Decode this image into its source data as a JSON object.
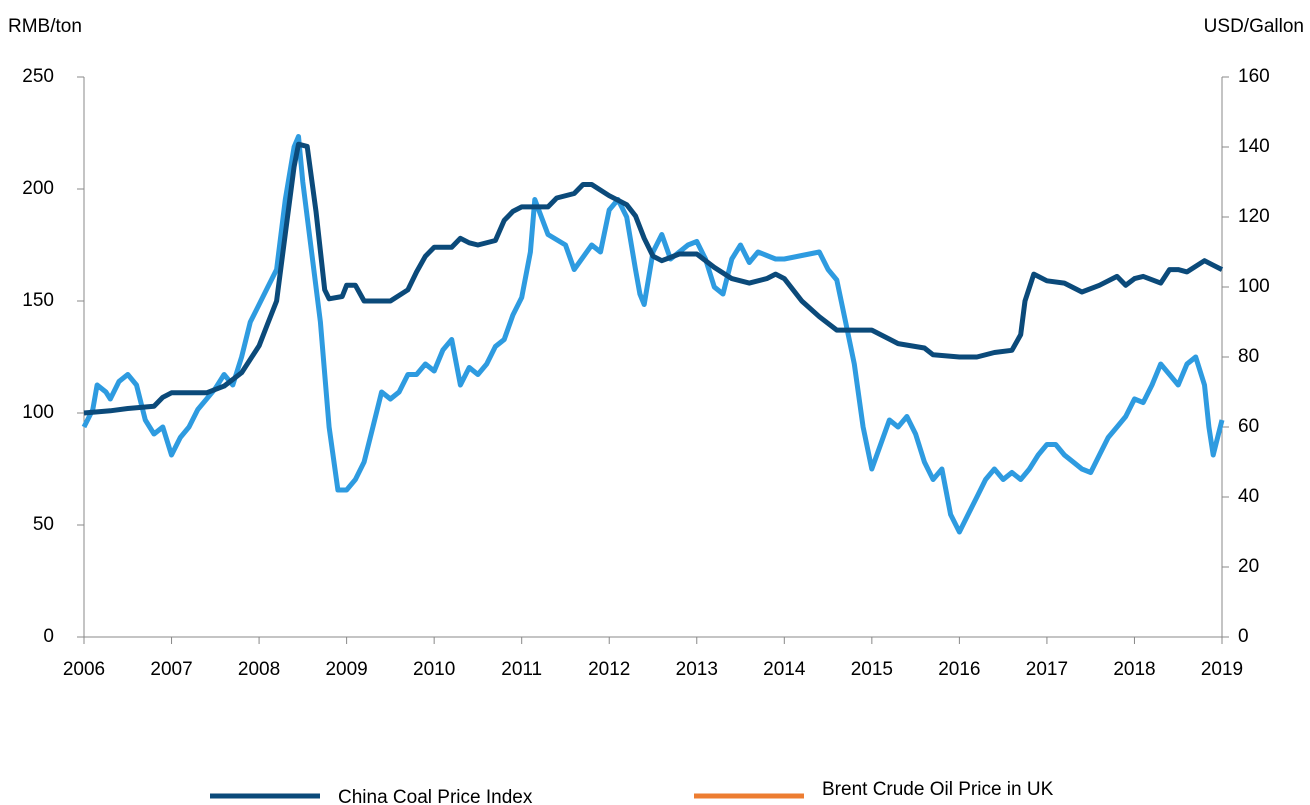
{
  "chart_data": {
    "type": "line",
    "y_label": "RMB/ton",
    "y2_label": "USD/Gallon",
    "xlim": [
      2006,
      2019
    ],
    "xticks": [
      2006,
      2007,
      2008,
      2009,
      2010,
      2011,
      2012,
      2013,
      2014,
      2015,
      2016,
      2017,
      2018,
      2019
    ],
    "ylim": [
      0,
      250
    ],
    "yticks": [
      0,
      50,
      100,
      150,
      200,
      250
    ],
    "y2lim": [
      0,
      160
    ],
    "y2ticks": [
      0,
      20,
      40,
      60,
      80,
      100,
      120,
      140,
      160
    ],
    "legend": "bottom",
    "series": [
      {
        "name": "China Coal Price Index",
        "color": "#0b4a7a",
        "axis": "y",
        "x": [
          2006.0,
          2006.3,
          2006.5,
          2006.8,
          2006.9,
          2007.0,
          2007.4,
          2007.6,
          2007.8,
          2008.0,
          2008.1,
          2008.2,
          2008.3,
          2008.4,
          2008.45,
          2008.55,
          2008.65,
          2008.75,
          2008.8,
          2008.95,
          2009.0,
          2009.1,
          2009.2,
          2009.5,
          2009.7,
          2009.8,
          2009.9,
          2010.0,
          2010.2,
          2010.3,
          2010.4,
          2010.5,
          2010.7,
          2010.8,
          2010.9,
          2011.0,
          2011.3,
          2011.4,
          2011.6,
          2011.7,
          2011.8,
          2012.0,
          2012.2,
          2012.3,
          2012.4,
          2012.5,
          2012.6,
          2012.8,
          2013.0,
          2013.2,
          2013.4,
          2013.6,
          2013.8,
          2013.9,
          2014.0,
          2014.2,
          2014.4,
          2014.6,
          2014.8,
          2015.0,
          2015.2,
          2015.3,
          2015.6,
          2015.7,
          2016.0,
          2016.2,
          2016.4,
          2016.6,
          2016.7,
          2016.75,
          2016.85,
          2017.0,
          2017.2,
          2017.4,
          2017.6,
          2017.8,
          2017.9,
          2018.0,
          2018.1,
          2018.3,
          2018.4,
          2018.5,
          2018.6,
          2018.8,
          2018.9,
          2019.0
        ],
        "values": [
          100,
          101,
          102,
          103,
          107,
          109,
          109,
          112,
          118,
          130,
          140,
          150,
          180,
          210,
          220,
          219,
          190,
          155,
          151,
          152,
          157,
          157,
          150,
          150,
          155,
          163,
          170,
          174,
          174,
          178,
          176,
          175,
          177,
          186,
          190,
          192,
          192,
          196,
          198,
          202,
          202,
          197,
          193,
          188,
          178,
          170,
          168,
          171,
          171,
          165,
          160,
          158,
          160,
          162,
          160,
          150,
          143,
          137,
          137,
          137,
          133,
          131,
          129,
          126,
          125,
          125,
          127,
          128,
          135,
          150,
          162,
          159,
          158,
          154,
          157,
          161,
          157,
          160,
          161,
          158,
          164,
          164,
          163,
          168,
          166,
          164
        ]
      },
      {
        "name": "Brent  Crude Oil Price in UK",
        "color": "#2e9be0",
        "legend_color": "#ed7d31",
        "axis": "y2",
        "x": [
          2006.0,
          2006.1,
          2006.15,
          2006.25,
          2006.3,
          2006.4,
          2006.5,
          2006.6,
          2006.7,
          2006.8,
          2006.9,
          2007.0,
          2007.1,
          2007.2,
          2007.3,
          2007.4,
          2007.5,
          2007.6,
          2007.7,
          2007.8,
          2007.9,
          2008.0,
          2008.1,
          2008.2,
          2008.3,
          2008.4,
          2008.45,
          2008.5,
          2008.6,
          2008.7,
          2008.8,
          2008.9,
          2009.0,
          2009.1,
          2009.2,
          2009.3,
          2009.4,
          2009.5,
          2009.6,
          2009.7,
          2009.8,
          2009.9,
          2010.0,
          2010.1,
          2010.2,
          2010.3,
          2010.4,
          2010.5,
          2010.6,
          2010.7,
          2010.8,
          2010.9,
          2011.0,
          2011.1,
          2011.15,
          2011.3,
          2011.5,
          2011.6,
          2011.8,
          2011.9,
          2012.0,
          2012.1,
          2012.2,
          2012.3,
          2012.35,
          2012.4,
          2012.5,
          2012.6,
          2012.7,
          2012.8,
          2012.9,
          2013.0,
          2013.1,
          2013.2,
          2013.3,
          2013.4,
          2013.5,
          2013.6,
          2013.7,
          2013.8,
          2013.9,
          2014.0,
          2014.2,
          2014.4,
          2014.5,
          2014.6,
          2014.7,
          2014.8,
          2014.9,
          2015.0,
          2015.1,
          2015.2,
          2015.3,
          2015.4,
          2015.5,
          2015.6,
          2015.7,
          2015.8,
          2015.9,
          2016.0,
          2016.1,
          2016.2,
          2016.3,
          2016.4,
          2016.5,
          2016.6,
          2016.7,
          2016.8,
          2016.9,
          2017.0,
          2017.1,
          2017.2,
          2017.3,
          2017.4,
          2017.5,
          2017.6,
          2017.7,
          2017.8,
          2017.9,
          2018.0,
          2018.1,
          2018.2,
          2018.3,
          2018.4,
          2018.5,
          2018.6,
          2018.7,
          2018.8,
          2018.85,
          2018.9,
          2019.0
        ],
        "values": [
          60,
          65,
          72,
          70,
          68,
          73,
          75,
          72,
          62,
          58,
          60,
          52,
          57,
          60,
          65,
          68,
          71,
          75,
          72,
          80,
          90,
          95,
          100,
          105,
          125,
          140,
          143,
          130,
          110,
          90,
          60,
          42,
          42,
          45,
          50,
          60,
          70,
          68,
          70,
          75,
          75,
          78,
          76,
          82,
          85,
          72,
          77,
          75,
          78,
          83,
          85,
          92,
          97,
          110,
          125,
          115,
          112,
          105,
          112,
          110,
          122,
          125,
          120,
          105,
          98,
          95,
          110,
          115,
          108,
          110,
          112,
          113,
          108,
          100,
          98,
          108,
          112,
          107,
          110,
          109,
          108,
          108,
          109,
          110,
          105,
          102,
          90,
          78,
          60,
          48,
          55,
          62,
          60,
          63,
          58,
          50,
          45,
          48,
          35,
          30,
          35,
          40,
          45,
          48,
          45,
          47,
          45,
          48,
          52,
          55,
          55,
          52,
          50,
          48,
          47,
          52,
          57,
          60,
          63,
          68,
          67,
          72,
          78,
          75,
          72,
          78,
          80,
          72,
          60,
          52,
          62
        ]
      }
    ]
  }
}
